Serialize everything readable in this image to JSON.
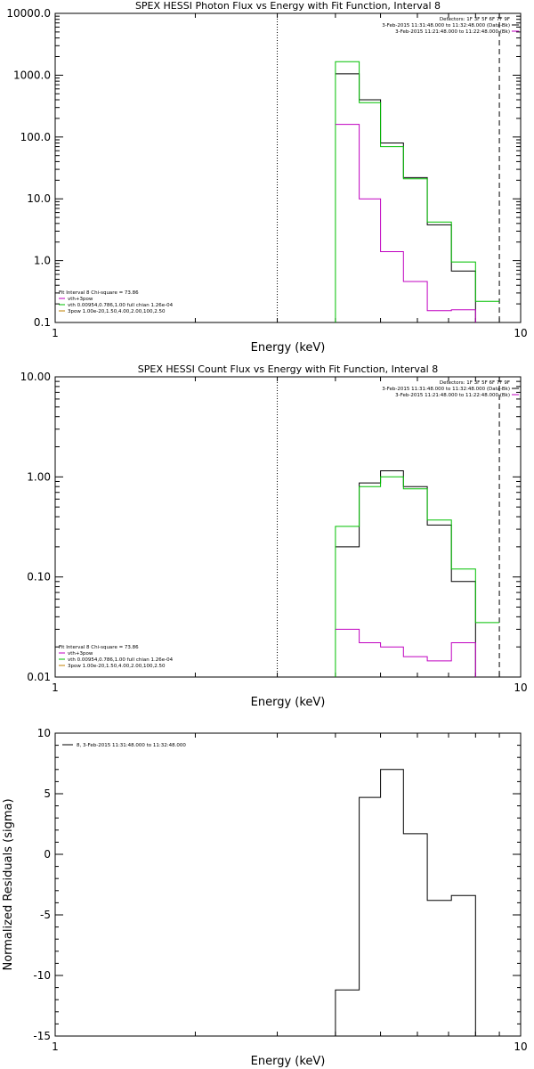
{
  "chart_data": [
    {
      "type": "line",
      "title": "SPEX HESSI Photon Flux vs Energy with Fit Function, Interval 8",
      "xlabel": "Energy (keV)",
      "ylabel": "",
      "xscale": "log",
      "yscale": "log",
      "xlim": [
        1,
        10
      ],
      "ylim": [
        0.1,
        10000
      ],
      "xticks": [
        "1",
        "10"
      ],
      "yticks": [
        "0.1",
        "1.0",
        "10.0",
        "100.0",
        "1000.0",
        "10000.0"
      ],
      "vlines": {
        "dotted": 3,
        "dashed": 9
      },
      "header_text": [
        "Detectors: 1F 3F 5F 6F 7F 9F",
        "3-Feb-2015 11:31:48.000 to 11:32:48.000 (Data-Bk)",
        "3-Feb-2015 11:21:48.000 to 11:22:48.000 (Bk)"
      ],
      "legend_text": [
        "Fit Interval 8   Chi-square = 73.86",
        "vth+3pow",
        "vth 0.00954,0.786,1.00  full chian 1.26e-04",
        "3pow 1.00e-20,1.50,4.00,2.00,100,2.50"
      ],
      "legend_colors": [
        "#000000",
        "#c000c0",
        "#00c000",
        "#c08000"
      ],
      "series": [
        {
          "color": "#000000",
          "edges": [
            3,
            3.5,
            4,
            4.5,
            5,
            5.6,
            6.3,
            7.1,
            8,
            9,
            10
          ],
          "values": [
            null,
            null,
            1050,
            400,
            80,
            22,
            3.8,
            0.68,
            null,
            null
          ],
          "drop_at_end": true
        },
        {
          "color": "#00c000",
          "edges": [
            3,
            3.5,
            4,
            4.5,
            5,
            5.6,
            6.3,
            7.1,
            8,
            9,
            10
          ],
          "values": [
            null,
            null,
            1650,
            360,
            70,
            21,
            4.2,
            0.95,
            0.22,
            null
          ],
          "drop_at_start": true
        },
        {
          "color": "#c000c0",
          "edges": [
            3,
            3.5,
            4,
            4.5,
            5,
            5.6,
            6.3,
            7.1,
            8,
            9,
            10
          ],
          "values": [
            null,
            null,
            160,
            10,
            1.4,
            0.46,
            0.155,
            0.16,
            null,
            null
          ],
          "drop_at_end": true
        }
      ]
    },
    {
      "type": "line",
      "title": "SPEX HESSI Count Flux vs Energy with Fit Function, Interval 8",
      "xlabel": "Energy (keV)",
      "ylabel": "",
      "xscale": "log",
      "yscale": "log",
      "xlim": [
        1,
        10
      ],
      "ylim": [
        0.01,
        10
      ],
      "xticks": [
        "1",
        "10"
      ],
      "yticks": [
        "0.01",
        "0.10",
        "1.00",
        "10.00"
      ],
      "vlines": {
        "dotted": 3,
        "dashed": 9
      },
      "header_text": [
        "Detectors: 1F 3F 5F 6F 7F 9F",
        "3-Feb-2015 11:31:48.000 to 11:32:48.000 (Data-Bk)",
        "3-Feb-2015 11:21:48.000 to 11:22:48.000 (Bk)"
      ],
      "legend_text": [
        "Fit Interval 8   Chi-square = 73.86",
        "vth+3pow",
        "vth 0.00954,0.786,1.00  full chian 1.26e-04",
        "3pow 1.00e-20,1.50,4.00,2.00,100,2.50"
      ],
      "legend_colors": [
        "#000000",
        "#c000c0",
        "#00c000",
        "#c08000"
      ],
      "series": [
        {
          "color": "#000000",
          "edges": [
            3,
            3.5,
            4,
            4.5,
            5,
            5.6,
            6.3,
            7.1,
            8,
            9,
            10
          ],
          "values": [
            null,
            null,
            0.2,
            0.87,
            1.15,
            0.8,
            0.33,
            0.09,
            null,
            null
          ],
          "drop_at_end": true
        },
        {
          "color": "#00c000",
          "edges": [
            3,
            3.5,
            4,
            4.5,
            5,
            5.6,
            6.3,
            7.1,
            8,
            9,
            10
          ],
          "values": [
            null,
            null,
            0.32,
            0.8,
            1.0,
            0.76,
            0.37,
            0.12,
            0.035,
            null
          ],
          "drop_at_start": true
        },
        {
          "color": "#c000c0",
          "edges": [
            3,
            3.5,
            4,
            4.5,
            5,
            5.6,
            6.3,
            7.1,
            8,
            9,
            10
          ],
          "values": [
            null,
            null,
            0.03,
            0.022,
            0.02,
            0.016,
            0.0145,
            0.022,
            null,
            null
          ],
          "drop_at_end": true
        }
      ]
    },
    {
      "type": "line",
      "title": "",
      "xlabel": "Energy (keV)",
      "ylabel": "Normalized Residuals (sigma)",
      "xscale": "log",
      "yscale": "linear",
      "xlim": [
        1,
        10
      ],
      "ylim": [
        -15,
        10
      ],
      "xticks": [
        "1",
        "10"
      ],
      "yticks": [
        "-15",
        "-10",
        "-5",
        "0",
        "5",
        "10"
      ],
      "legend_text": [
        "8,  3-Feb-2015 11:31:48.000 to 11:32:48.000"
      ],
      "legend_colors": [
        "#000000"
      ],
      "series": [
        {
          "color": "#000000",
          "edges": [
            3,
            3.5,
            4,
            4.5,
            5,
            5.6,
            6.3,
            7.1,
            8,
            9,
            10
          ],
          "values": [
            null,
            null,
            -11.2,
            4.7,
            7.0,
            1.7,
            -3.8,
            -3.4,
            null,
            null
          ],
          "drop_at_start": true,
          "drop_at_end": true
        }
      ]
    }
  ]
}
